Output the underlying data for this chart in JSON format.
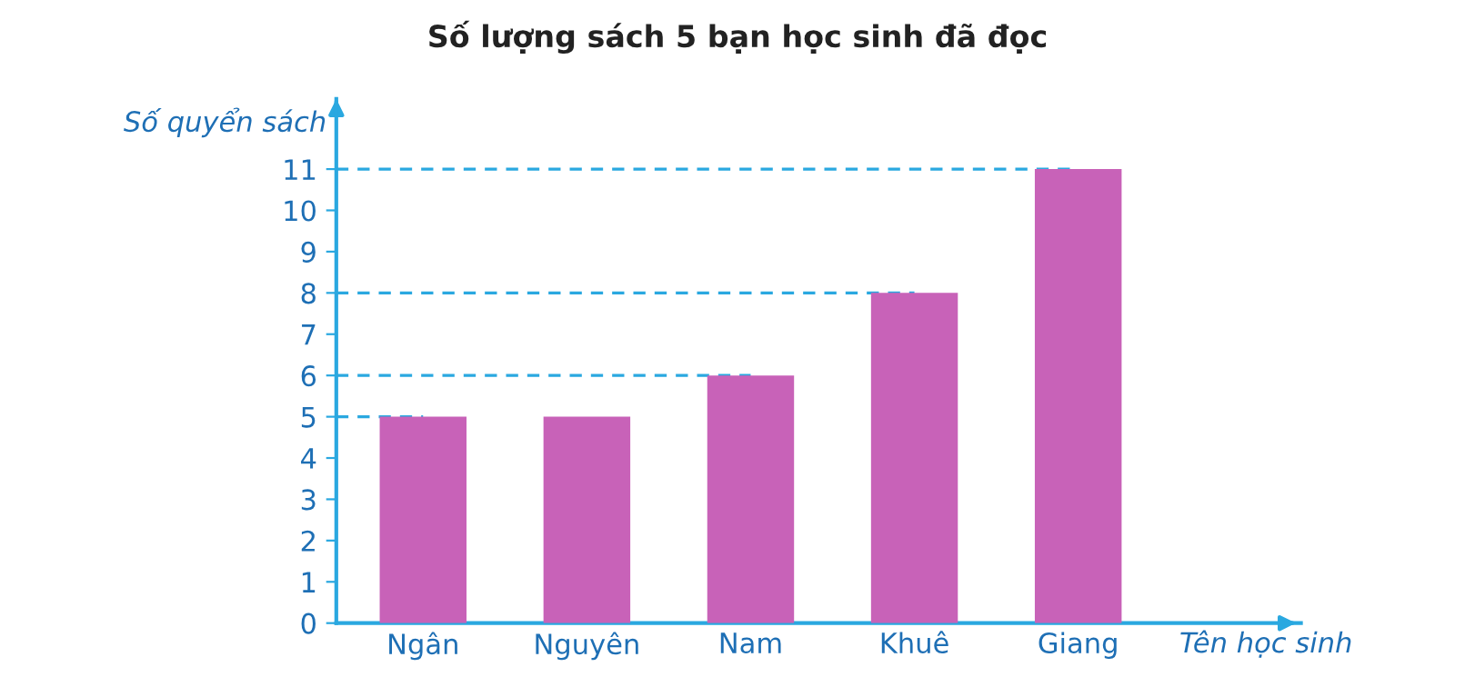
{
  "chart_data": {
    "type": "bar",
    "title": "Số lượng sách 5 bạn học sinh đã đọc",
    "xlabel": "Tên học sinh",
    "ylabel": "Số quyển sách",
    "categories": [
      "Ngân",
      "Nguyên",
      "Nam",
      "Khuê",
      "Giang"
    ],
    "values": [
      5,
      5,
      6,
      8,
      11
    ],
    "color": "#c862b8",
    "ylim": [
      0,
      12.7
    ],
    "yticks": [
      0,
      1,
      2,
      3,
      4,
      5,
      6,
      7,
      8,
      9,
      10,
      11
    ],
    "ref_lines": [
      {
        "axis": "y",
        "value": 5,
        "color": "#2aa8e0",
        "line_style": "dashed"
      },
      {
        "axis": "y",
        "value": 6,
        "color": "#2aa8e0",
        "line_style": "dashed"
      },
      {
        "axis": "y",
        "value": 8,
        "color": "#2aa8e0",
        "line_style": "dashed"
      },
      {
        "axis": "y",
        "value": 11,
        "color": "#2aa8e0",
        "line_style": "dashed"
      }
    ],
    "grid": false,
    "legend": false
  }
}
